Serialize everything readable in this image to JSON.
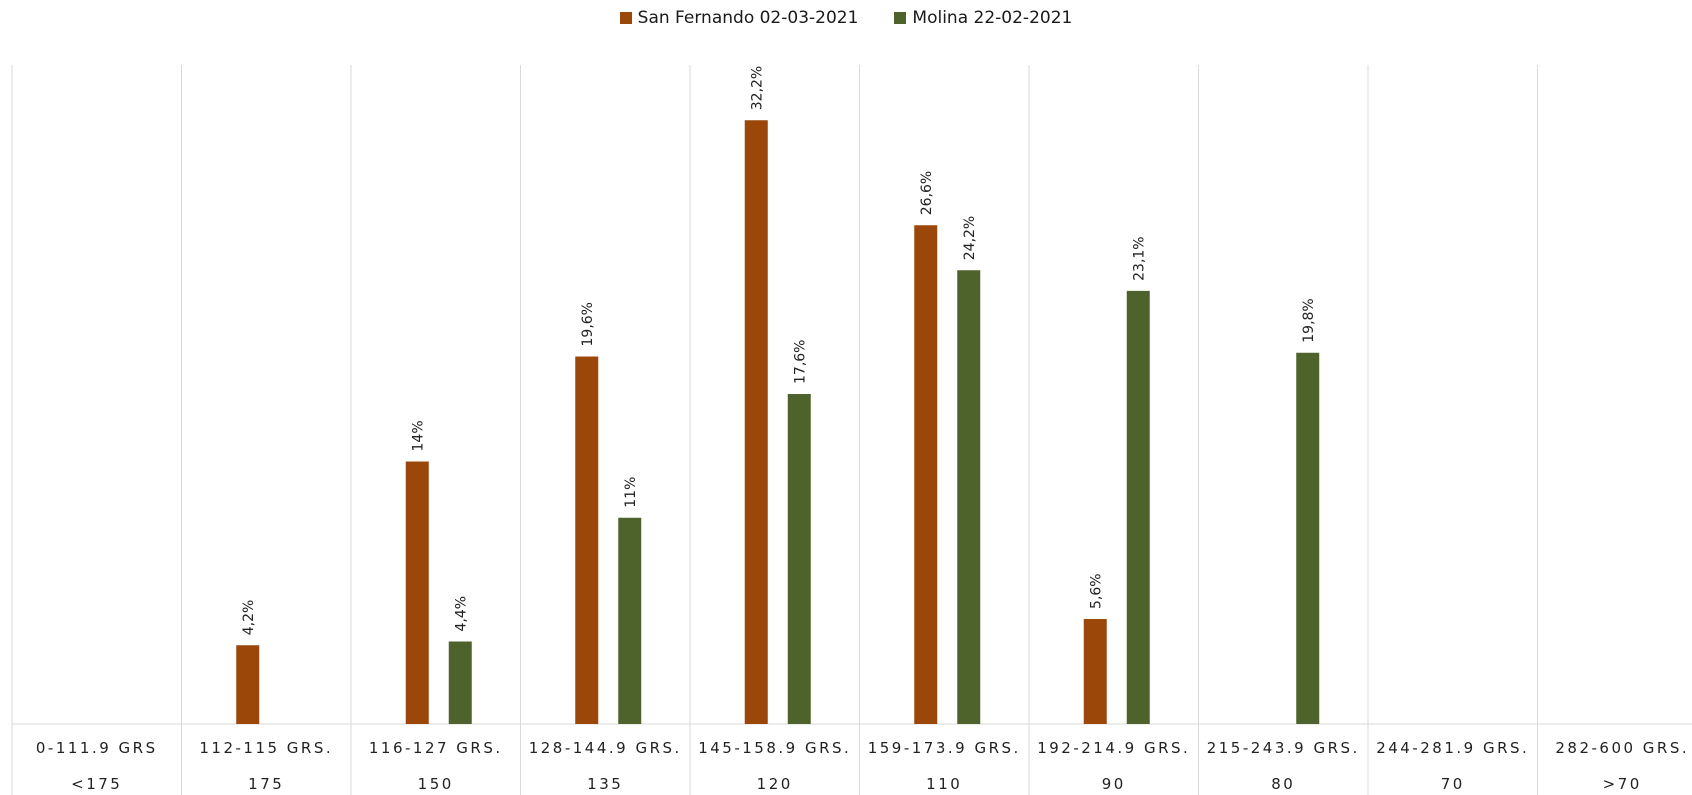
{
  "chart_data": {
    "type": "bar",
    "categories": [
      "0-111.9 GRS",
      "112-115 GRS.",
      "116-127 GRS.",
      "128-144.9 GRS.",
      "145-158.9 GRS.",
      "159-173.9 GRS.",
      "192-214.9 GRS.",
      "215-243.9 GRS.",
      "244-281.9 GRS.",
      "282-600 GRS."
    ],
    "secondary_categories": [
      "<175",
      "175",
      "150",
      "135",
      "120",
      "110",
      "90",
      "80",
      "70",
      ">70"
    ],
    "series": [
      {
        "name": "San Fernando 02-03-2021",
        "color": "#9a4709",
        "values": [
          null,
          4.2,
          14,
          19.6,
          32.2,
          26.6,
          5.6,
          null,
          null,
          null
        ],
        "labels": [
          "",
          "4,2%",
          "14%",
          "19,6%",
          "32,2%",
          "26,6%",
          "5,6%",
          "",
          "",
          ""
        ]
      },
      {
        "name": "Molina 22-02-2021",
        "color": "#4e622b",
        "values": [
          null,
          null,
          4.4,
          11,
          17.6,
          24.2,
          23.1,
          19.8,
          null,
          null
        ],
        "labels": [
          "",
          "",
          "4,4%",
          "11%",
          "17,6%",
          "24,2%",
          "23,1%",
          "19,8%",
          "",
          ""
        ]
      }
    ],
    "ylim": [
      0,
      35
    ],
    "grid": "vertical category separators",
    "legend_position": "top-center"
  }
}
